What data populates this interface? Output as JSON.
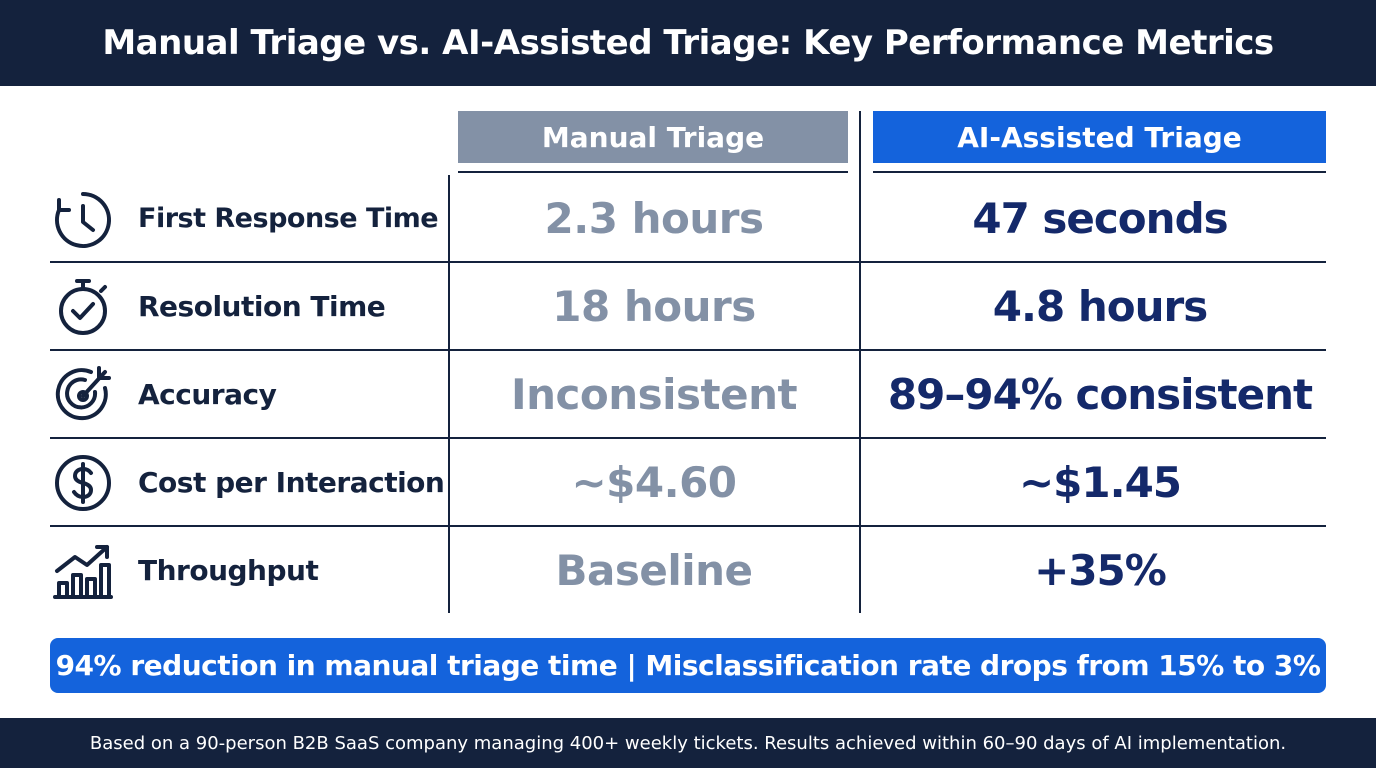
{
  "header": {
    "title": "Manual Triage vs. AI-Assisted Triage: Key Performance Metrics"
  },
  "chart_data": {
    "type": "table",
    "title": "Manual Triage vs. AI-Assisted Triage: Key Performance Metrics",
    "columns": [
      "Manual Triage",
      "AI-Assisted Triage"
    ],
    "rows": [
      {
        "metric": "First Response Time",
        "icon": "clock-icon",
        "manual": "2.3 hours",
        "ai": "47 seconds"
      },
      {
        "metric": "Resolution Time",
        "icon": "stopwatch-icon",
        "manual": "18 hours",
        "ai": "4.8 hours"
      },
      {
        "metric": "Accuracy",
        "icon": "target-icon",
        "manual": "Inconsistent",
        "ai": "89–94% consistent"
      },
      {
        "metric": "Cost per Interaction",
        "icon": "dollar-icon",
        "manual": "~$4.60",
        "ai": "~$1.45"
      },
      {
        "metric": "Throughput",
        "icon": "growth-chart-icon",
        "manual": "Baseline",
        "ai": "+35%"
      }
    ]
  },
  "banner": {
    "text": "94% reduction in manual triage time | Misclassification rate drops from 15% to 3%"
  },
  "footer": {
    "text": "Based on a 90-person B2B SaaS company managing 400+ weekly tickets. Results achieved within 60–90 days of AI implementation."
  },
  "colors": {
    "navy": "#14223d",
    "manual_gray": "#8391a6",
    "ai_blue": "#1463dc",
    "ai_value_navy": "#14296a"
  }
}
